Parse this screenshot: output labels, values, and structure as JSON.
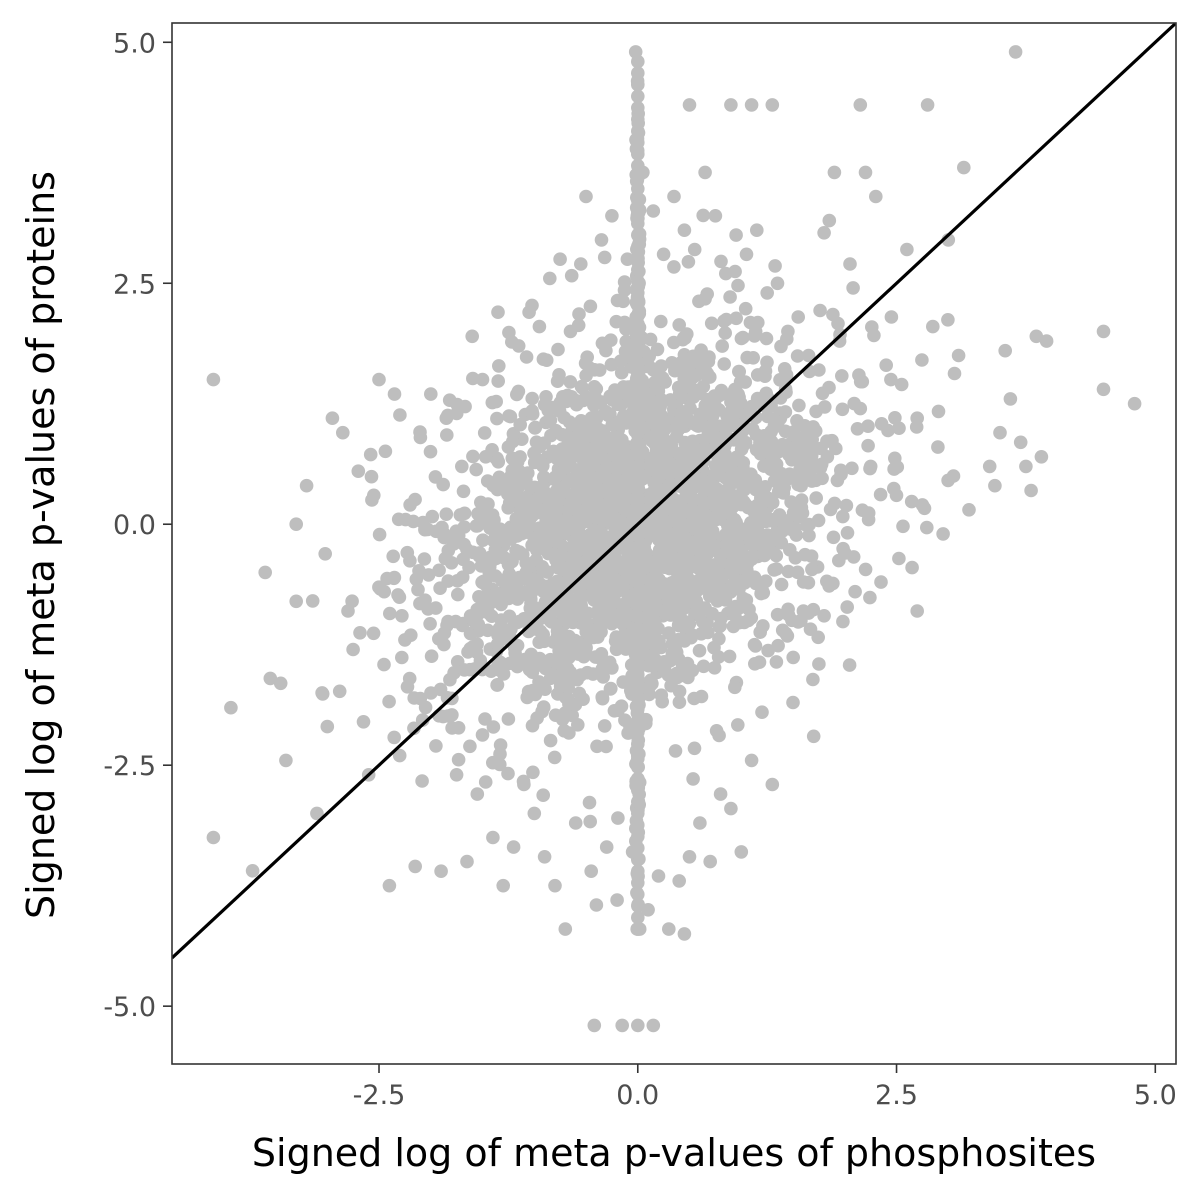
{
  "chart_data": {
    "type": "scatter",
    "title": "",
    "xlabel": "Signed log of meta p-values of phosphosites",
    "ylabel": "Signed log of meta p-values of proteins",
    "xlim": [
      -4.5,
      5.2
    ],
    "ylim": [
      -5.6,
      5.2
    ],
    "x_ticks": [
      -2.5,
      0.0,
      2.5,
      5.0
    ],
    "x_tick_labels": [
      "-2.5",
      "0.0",
      "2.5",
      "5.0"
    ],
    "y_ticks": [
      -5.0,
      -2.5,
      0.0,
      2.5,
      5.0
    ],
    "y_tick_labels": [
      "-5.0",
      "-2.5",
      "0.0",
      "2.5",
      "5.0"
    ],
    "grid": false,
    "legend": "none",
    "point_color": "#bebebe",
    "line_color": "#000000",
    "reference_line": {
      "slope": 1.0,
      "intercept": 0.0
    },
    "points_outer": [
      [
        -4.1,
        1.5
      ],
      [
        -4.1,
        -3.25
      ],
      [
        -3.6,
        -0.5
      ],
      [
        -3.55,
        -1.6
      ],
      [
        -3.45,
        -1.65
      ],
      [
        -3.4,
        -2.45
      ],
      [
        -3.3,
        0.0
      ],
      [
        -3.3,
        -0.8
      ],
      [
        -3.2,
        0.4
      ],
      [
        -3.1,
        -3.0
      ],
      [
        -3.05,
        -1.75
      ],
      [
        -3.0,
        -2.1
      ],
      [
        -2.95,
        1.1
      ],
      [
        -2.85,
        0.95
      ],
      [
        -2.8,
        -0.9
      ],
      [
        -2.75,
        -1.3
      ],
      [
        -2.7,
        0.55
      ],
      [
        -2.65,
        -2.05
      ],
      [
        -2.6,
        -2.6
      ],
      [
        -2.55,
        0.3
      ],
      [
        -2.5,
        1.5
      ],
      [
        -2.45,
        -0.7
      ],
      [
        -2.4,
        -3.75
      ],
      [
        -2.35,
        1.35
      ],
      [
        -2.3,
        -2.4
      ],
      [
        -2.25,
        -1.2
      ],
      [
        -2.2,
        0.2
      ],
      [
        -2.15,
        -3.55
      ],
      [
        -2.1,
        0.9
      ],
      [
        -2.05,
        -1.9
      ],
      [
        -2.0,
        1.35
      ],
      [
        -1.95,
        -2.3
      ],
      [
        -1.9,
        -3.6
      ],
      [
        -1.85,
        1.1
      ],
      [
        -1.8,
        -0.4
      ],
      [
        -1.75,
        -2.6
      ],
      [
        -1.7,
        0.6
      ],
      [
        -1.65,
        -3.5
      ],
      [
        -1.6,
        1.95
      ],
      [
        -1.55,
        -2.8
      ],
      [
        -1.5,
        1.5
      ],
      [
        -1.45,
        -1.1
      ],
      [
        -1.4,
        -3.25
      ],
      [
        -1.35,
        2.2
      ],
      [
        -1.3,
        -3.75
      ],
      [
        -1.25,
        0.8
      ],
      [
        -1.2,
        -3.35
      ],
      [
        -1.15,
        1.85
      ],
      [
        -1.1,
        -2.7
      ],
      [
        -1.05,
        2.2
      ],
      [
        -1.0,
        -3.0
      ],
      [
        -0.95,
        2.05
      ],
      [
        -0.9,
        -3.45
      ],
      [
        -0.85,
        2.55
      ],
      [
        -0.8,
        -3.75
      ],
      [
        -0.75,
        2.75
      ],
      [
        -0.7,
        -4.2
      ],
      [
        -0.65,
        2.0
      ],
      [
        -0.6,
        -3.1
      ],
      [
        -0.55,
        2.7
      ],
      [
        -0.5,
        3.4
      ],
      [
        -0.45,
        -3.6
      ],
      [
        -0.4,
        -3.95
      ],
      [
        -0.35,
        2.95
      ],
      [
        -0.3,
        -3.35
      ],
      [
        -0.25,
        3.2
      ],
      [
        -0.2,
        -3.9
      ],
      [
        -0.15,
        -5.2
      ],
      [
        -0.1,
        2.75
      ],
      [
        -0.05,
        -3.4
      ],
      [
        -0.42,
        -5.2
      ],
      [
        0.05,
        3.65
      ],
      [
        0.1,
        -4.0
      ],
      [
        0.15,
        3.25
      ],
      [
        0.2,
        -3.65
      ],
      [
        0.25,
        2.8
      ],
      [
        0.3,
        -4.2
      ],
      [
        0.35,
        3.4
      ],
      [
        0.4,
        -3.7
      ],
      [
        0.45,
        3.05
      ],
      [
        0.5,
        -3.45
      ],
      [
        0.55,
        2.85
      ],
      [
        0.6,
        -3.1
      ],
      [
        0.65,
        3.65
      ],
      [
        0.7,
        -3.5
      ],
      [
        0.75,
        3.2
      ],
      [
        0.8,
        -2.8
      ],
      [
        0.85,
        2.6
      ],
      [
        0.9,
        -2.95
      ],
      [
        0.95,
        3.0
      ],
      [
        1.0,
        -3.4
      ],
      [
        1.05,
        2.8
      ],
      [
        1.1,
        -2.45
      ],
      [
        1.15,
        3.05
      ],
      [
        1.2,
        -1.95
      ],
      [
        1.25,
        2.4
      ],
      [
        1.3,
        -2.7
      ],
      [
        1.35,
        2.5
      ],
      [
        1.4,
        -1.1
      ],
      [
        1.45,
        2.0
      ],
      [
        1.5,
        -1.85
      ],
      [
        1.55,
        2.15
      ],
      [
        1.6,
        -0.9
      ],
      [
        1.65,
        1.75
      ],
      [
        1.7,
        -2.2
      ],
      [
        1.75,
        1.6
      ],
      [
        1.8,
        -0.95
      ],
      [
        1.85,
        3.15
      ],
      [
        1.9,
        3.65
      ],
      [
        1.95,
        1.9
      ],
      [
        2.0,
        -0.3
      ],
      [
        2.05,
        2.7
      ],
      [
        2.1,
        -0.7
      ],
      [
        2.15,
        1.2
      ],
      [
        2.2,
        3.65
      ],
      [
        2.25,
        0.6
      ],
      [
        2.3,
        3.4
      ],
      [
        2.35,
        -0.6
      ],
      [
        2.4,
        1.65
      ],
      [
        2.45,
        2.15
      ],
      [
        2.5,
        0.3
      ],
      [
        2.55,
        1.45
      ],
      [
        2.6,
        2.85
      ],
      [
        2.65,
        -0.45
      ],
      [
        2.7,
        1.1
      ],
      [
        2.75,
        0.2
      ],
      [
        2.8,
        4.35
      ],
      [
        2.85,
        2.05
      ],
      [
        2.9,
        0.8
      ],
      [
        2.95,
        -0.1
      ],
      [
        3.0,
        2.95
      ],
      [
        3.05,
        0.5
      ],
      [
        3.1,
        1.75
      ],
      [
        3.15,
        3.7
      ],
      [
        3.2,
        0.15
      ],
      [
        3.4,
        0.6
      ],
      [
        3.45,
        0.4
      ],
      [
        3.5,
        0.95
      ],
      [
        3.55,
        1.8
      ],
      [
        3.6,
        1.3
      ],
      [
        3.65,
        4.9
      ],
      [
        3.7,
        0.85
      ],
      [
        3.75,
        0.6
      ],
      [
        3.8,
        0.35
      ],
      [
        3.85,
        1.95
      ],
      [
        3.9,
        0.7
      ],
      [
        3.95,
        1.9
      ],
      [
        4.5,
        2.0
      ],
      [
        4.5,
        1.4
      ],
      [
        4.8,
        1.25
      ],
      [
        2.15,
        4.35
      ],
      [
        1.3,
        4.35
      ],
      [
        0.9,
        4.35
      ],
      [
        0.5,
        4.35
      ],
      [
        1.1,
        4.35
      ],
      [
        2.7,
        -0.9
      ],
      [
        1.75,
        -1.45
      ],
      [
        0.45,
        -4.25
      ],
      [
        0.15,
        -5.2
      ],
      [
        0.0,
        -5.2
      ]
    ],
    "cloud_sd": [
      0.95,
      0.95
    ],
    "cloud_correlation": 0.28,
    "vertical_band_x": 0.0
  }
}
